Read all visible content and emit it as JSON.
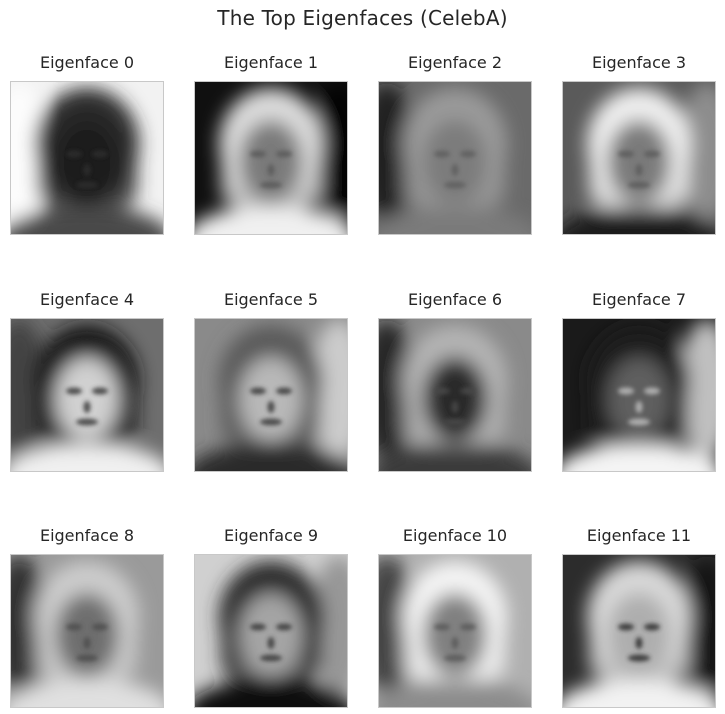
{
  "figure": {
    "title": "The Top Eigenfaces (CelebA)"
  },
  "eigenfaces": [
    {
      "label": "Eigenface 0",
      "bg": "#f2f2f2",
      "hair": "#2a2a2a",
      "face": "#1c1c1c",
      "feat": "#2e2e2e",
      "shoulder": "#4a4a4a",
      "side": "#ffffff"
    },
    {
      "label": "Eigenface 1",
      "bg": "#101010",
      "hair": "#dcdcdc",
      "face": "#7a7a7a",
      "feat": "#5a5a5a",
      "shoulder": "#f0f0f0",
      "side": "#000000"
    },
    {
      "label": "Eigenface 2",
      "bg": "#6a6a6a",
      "hair": "#9a9a9a",
      "face": "#7c7c7c",
      "feat": "#5e5e5e",
      "shoulder": "#7a7a7a",
      "side": "#101010"
    },
    {
      "label": "Eigenface 3",
      "bg": "#5a5a5a",
      "hair": "#efefef",
      "face": "#7a7a7a",
      "feat": "#5c5c5c",
      "shoulder": "#1a1a1a",
      "side": "#9a9a9a"
    },
    {
      "label": "Eigenface 4",
      "bg": "#6e6e6e",
      "hair": "#141414",
      "face": "#d0d0d0",
      "feat": "#3a3a3a",
      "shoulder": "#f0f0f0",
      "side": "#3a3a3a"
    },
    {
      "label": "Eigenface 5",
      "bg": "#8a8a8a",
      "hair": "#5a5a5a",
      "face": "#b8b8b8",
      "feat": "#3a3a3a",
      "shoulder": "#2a2a2a",
      "side": "#dcdcdc"
    },
    {
      "label": "Eigenface 6",
      "bg": "#8a8a8a",
      "hair": "#b4b4b4",
      "face": "#2c2c2c",
      "feat": "#4a4a4a",
      "shoulder": "#3a3a3a",
      "side": "#101010"
    },
    {
      "label": "Eigenface 7",
      "bg": "#1a1a1a",
      "hair": "#1e1e1e",
      "face": "#5e5e5e",
      "feat": "#bcbcbc",
      "shoulder": "#f4f4f4",
      "side": "#eaeaea"
    },
    {
      "label": "Eigenface 8",
      "bg": "#9a9a9a",
      "hair": "#cccccc",
      "face": "#6e6e6e",
      "feat": "#4e4e4e",
      "shoulder": "#e0e0e0",
      "side": "#1a1a1a"
    },
    {
      "label": "Eigenface 9",
      "bg": "#d0d0d0",
      "hair": "#2a2a2a",
      "face": "#a4a4a4",
      "feat": "#3a3a3a",
      "shoulder": "#111111",
      "side": "#8a8a8a"
    },
    {
      "label": "Eigenface 10",
      "bg": "#b0b0b0",
      "hair": "#f4f4f4",
      "face": "#808080",
      "feat": "#5a5a5a",
      "shoulder": "#8c8c8c",
      "side": "#2a2a2a"
    },
    {
      "label": "Eigenface 11",
      "bg": "#2c2c2c",
      "hair": "#d8d8d8",
      "face": "#aeaeae",
      "feat": "#2e2e2e",
      "shoulder": "#f2f2f2",
      "side": "#141414"
    }
  ]
}
